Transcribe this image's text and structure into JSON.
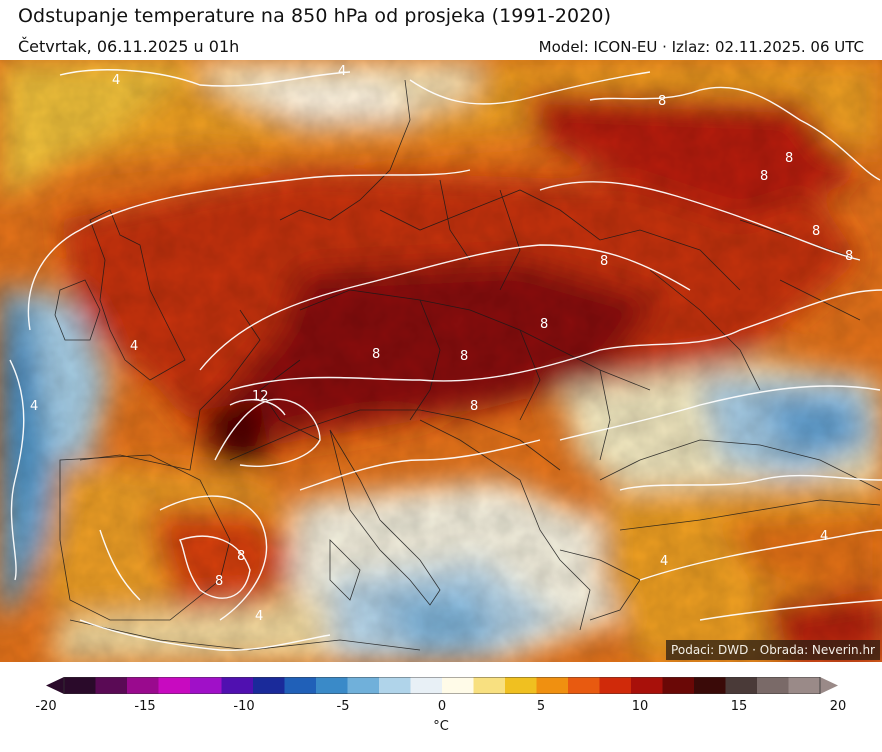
{
  "header": {
    "title": "Odstupanje temperature na 850 hPa od prosjeka (1991-2020)",
    "valid_time": "Četvrtak, 06.11.2025 u 01h",
    "model_run": "Model: ICON-EU · Izlaz: 02.11.2025. 06 UTC"
  },
  "map": {
    "credit": "Podaci: DWD · Obrada: Neverin.hr",
    "contour_labels": [
      "4",
      "8",
      "8",
      "8",
      "8",
      "8",
      "8",
      "4",
      "12",
      "8",
      "8",
      "8",
      "8",
      "8",
      "4",
      "4",
      "8",
      "4",
      "4",
      "4"
    ]
  },
  "colorbar": {
    "min": -20,
    "max": 20,
    "ticks": [
      "-20",
      "-15",
      "-10",
      "-5",
      "0",
      "5",
      "10",
      "15",
      "20"
    ],
    "unit": "°C",
    "colors": [
      "#2a0a2a",
      "#5a0a55",
      "#9a0a8e",
      "#c80ac0",
      "#a010c8",
      "#5010b0",
      "#1a2a9a",
      "#2060b8",
      "#3a8ac8",
      "#70b0da",
      "#b0d4ea",
      "#e8f0f6",
      "#fffbe8",
      "#f8e080",
      "#f0c020",
      "#f09010",
      "#e85a10",
      "#d02a0a",
      "#a8100a",
      "#6a0806",
      "#3a0a08",
      "#4a3a38",
      "#7a6a68",
      "#9a8a88"
    ]
  }
}
